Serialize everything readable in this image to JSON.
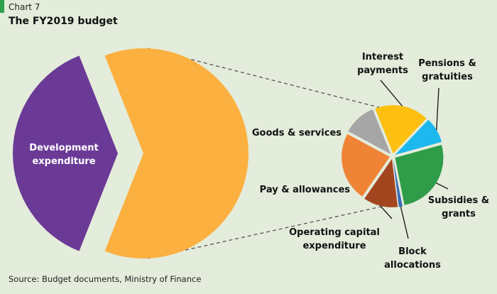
{
  "header": {
    "chart_number": "Chart 7",
    "title": "The FY2019 budget"
  },
  "source": "Source: Budget documents, Ministry of Finance",
  "chart_data": {
    "type": "pie",
    "title": "The FY2019 budget",
    "main_pie": {
      "slices": [
        {
          "label_lines": [
            "Development",
            "expenditure"
          ],
          "value": 38,
          "color": "#6b3a96"
        },
        {
          "label_lines": [],
          "value": 62,
          "color": "#fbb040"
        }
      ]
    },
    "detail_pie": {
      "slices": [
        {
          "label_lines": [
            "Interest",
            "payments"
          ],
          "value": 16.5,
          "color": "#fdc010"
        },
        {
          "label_lines": [
            "Pensions &",
            "gratuities"
          ],
          "value": 7.8,
          "color": "#1cb8ee"
        },
        {
          "label_lines": [
            "Subsidies &",
            "grants"
          ],
          "value": 23.7,
          "color": "#2e9c48"
        },
        {
          "label_lines": [
            "Block",
            "allocations"
          ],
          "value": 1.1,
          "color": "#3a6db5"
        },
        {
          "label_lines": [
            "Operating capital",
            "expenditure"
          ],
          "value": 10.5,
          "color": "#a3461f"
        },
        {
          "label_lines": [
            "Pay & allowances"
          ],
          "value": 21.0,
          "color": "#ef8436"
        },
        {
          "label_lines": [
            "Goods & services"
          ],
          "value": 10.0,
          "color": "#a6a6a6"
        }
      ]
    }
  }
}
